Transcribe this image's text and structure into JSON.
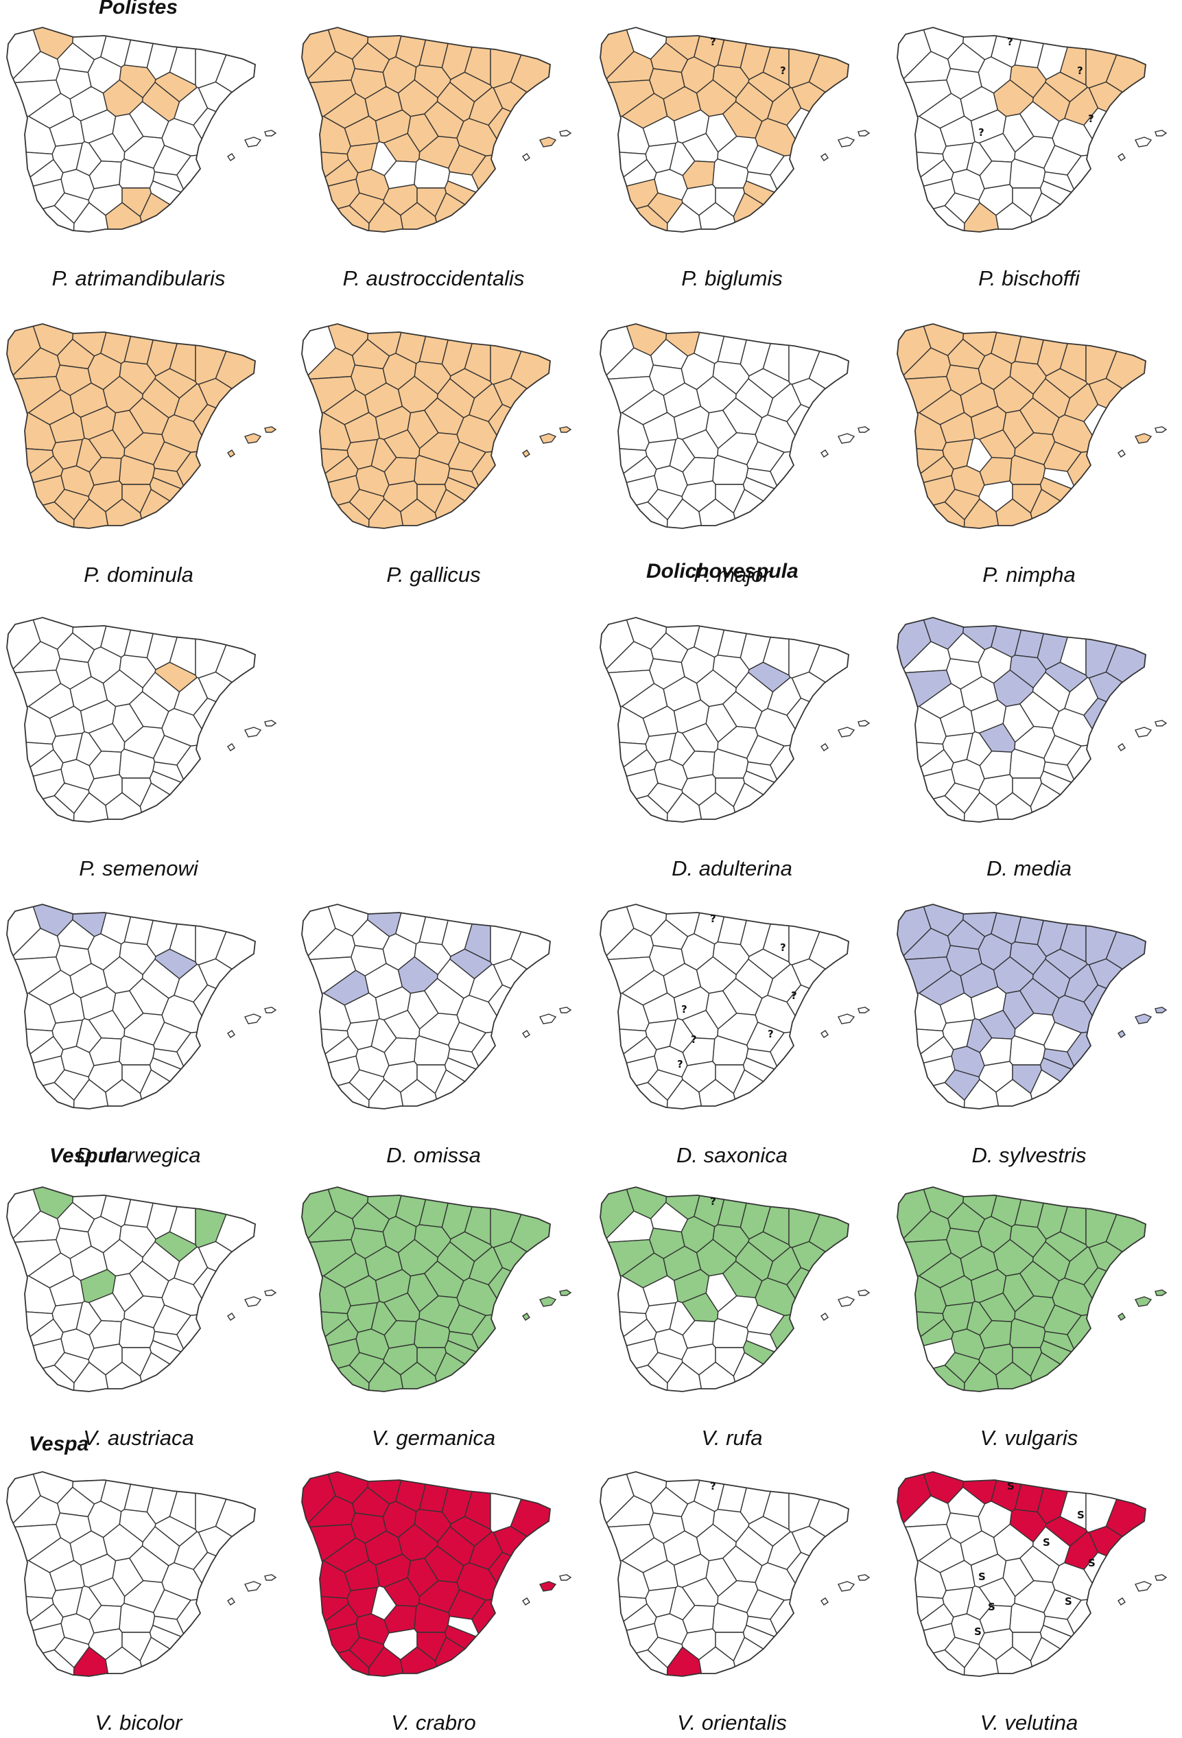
{
  "genera": [
    {
      "name": "Polistes",
      "color": "#f7c994"
    },
    {
      "name": "Dolichovespula",
      "color": "#b8bde0"
    },
    {
      "name": "Vespula",
      "color": "#92cc88"
    },
    {
      "name": "Vespa",
      "color": "#d8093f"
    }
  ],
  "maps": [
    {
      "species": "P. atrimandibularis",
      "genus": 0,
      "filled": [
        1,
        12,
        13,
        18,
        21,
        40,
        43,
        44
      ],
      "marks": []
    },
    {
      "species": "P. austroccidentalis",
      "genus": 0,
      "filled": [
        0,
        1,
        2,
        3,
        4,
        5,
        6,
        7,
        8,
        9,
        10,
        11,
        12,
        13,
        14,
        15,
        16,
        17,
        18,
        19,
        20,
        21,
        22,
        23,
        24,
        25,
        26,
        27,
        28,
        29,
        30,
        31,
        32,
        33,
        34,
        37,
        38,
        39,
        40,
        41,
        42,
        43,
        44,
        45,
        46,
        47
      ],
      "marks": []
    },
    {
      "species": "P. biglumis",
      "genus": 0,
      "filled": [
        0,
        2,
        3,
        4,
        5,
        6,
        7,
        8,
        9,
        10,
        11,
        12,
        13,
        14,
        15,
        16,
        17,
        18,
        19,
        20,
        21,
        22,
        23,
        34,
        36,
        37,
        41,
        43,
        45
      ],
      "marks": [
        "?",
        "?"
      ]
    },
    {
      "species": "P. bischoffi",
      "genus": 0,
      "filled": [
        6,
        12,
        13,
        14,
        15,
        16,
        17,
        18,
        21,
        42
      ],
      "marks": [
        "?",
        "?",
        "?",
        "?"
      ]
    },
    {
      "species": "P. dominula",
      "genus": 0,
      "filled": [
        0,
        1,
        2,
        3,
        4,
        5,
        6,
        7,
        8,
        9,
        10,
        11,
        12,
        13,
        14,
        15,
        16,
        17,
        18,
        19,
        20,
        21,
        22,
        23,
        24,
        25,
        26,
        27,
        28,
        29,
        30,
        31,
        32,
        33,
        34,
        35,
        36,
        37,
        38,
        39,
        40,
        41,
        42,
        43,
        44,
        45,
        46,
        47,
        48,
        49
      ],
      "marks": []
    },
    {
      "species": "P. gallicus",
      "genus": 0,
      "filled": [
        1,
        2,
        3,
        4,
        5,
        6,
        7,
        8,
        9,
        10,
        11,
        12,
        13,
        14,
        15,
        16,
        17,
        18,
        19,
        20,
        21,
        22,
        23,
        24,
        25,
        26,
        27,
        28,
        29,
        30,
        31,
        32,
        33,
        34,
        35,
        36,
        37,
        38,
        39,
        40,
        41,
        42,
        43,
        44,
        45,
        46,
        47,
        48,
        49
      ],
      "marks": []
    },
    {
      "species": "P. major",
      "genus": 0,
      "filled": [
        1,
        2
      ],
      "marks": []
    },
    {
      "species": "P. nimpha",
      "genus": 0,
      "filled": [
        0,
        1,
        2,
        3,
        4,
        5,
        6,
        7,
        8,
        9,
        10,
        11,
        12,
        13,
        14,
        15,
        16,
        17,
        18,
        19,
        20,
        21,
        22,
        23,
        25,
        26,
        27,
        28,
        29,
        30,
        31,
        32,
        33,
        34,
        35,
        36,
        37,
        38,
        40,
        41,
        42,
        43,
        44,
        45,
        46,
        47
      ],
      "marks": []
    },
    {
      "species": "P. semenowi",
      "genus": 0,
      "filled": [
        13
      ],
      "marks": []
    },
    {
      "species": "D. adulterina",
      "genus": 1,
      "filled": [
        13
      ],
      "marks": []
    },
    {
      "species": "D. media",
      "genus": 1,
      "filled": [
        0,
        1,
        2,
        3,
        4,
        5,
        9,
        12,
        13,
        14,
        15,
        16,
        21,
        24,
        30
      ],
      "marks": []
    },
    {
      "species": "D. norwegica",
      "genus": 1,
      "filled": [
        1,
        2,
        13
      ],
      "marks": []
    },
    {
      "species": "D. omissa",
      "genus": 1,
      "filled": [
        2,
        6,
        13,
        19,
        21
      ],
      "marks": []
    },
    {
      "species": "D. saxonica",
      "genus": 1,
      "filled": [],
      "marks": [
        "?",
        "?",
        "?",
        "?",
        "?",
        "?",
        "?"
      ]
    },
    {
      "species": "D. sylvestris",
      "genus": 1,
      "filled": [
        0,
        1,
        2,
        3,
        4,
        5,
        6,
        7,
        8,
        9,
        10,
        11,
        12,
        13,
        14,
        15,
        16,
        17,
        18,
        19,
        20,
        21,
        22,
        23,
        24,
        30,
        33,
        34,
        38,
        40,
        41,
        47,
        48,
        49
      ],
      "marks": []
    },
    {
      "species": "V. austriaca",
      "genus": 2,
      "filled": [
        1,
        13,
        14,
        25
      ],
      "marks": []
    },
    {
      "species": "V. germanica",
      "genus": 2,
      "filled": [
        0,
        1,
        2,
        3,
        4,
        5,
        6,
        7,
        8,
        9,
        10,
        11,
        12,
        13,
        14,
        15,
        16,
        17,
        18,
        19,
        20,
        21,
        22,
        23,
        24,
        25,
        26,
        27,
        28,
        29,
        30,
        31,
        32,
        33,
        34,
        35,
        36,
        37,
        38,
        39,
        40,
        41,
        42,
        43,
        44,
        45,
        46,
        47,
        48,
        49
      ],
      "marks": []
    },
    {
      "species": "V. rufa",
      "genus": 2,
      "filled": [
        0,
        1,
        2,
        3,
        4,
        5,
        6,
        9,
        10,
        11,
        12,
        13,
        14,
        15,
        16,
        17,
        18,
        19,
        20,
        21,
        22,
        23,
        24,
        25,
        30,
        33,
        34
      ],
      "marks": [
        "?"
      ]
    },
    {
      "species": "V. vulgaris",
      "genus": 2,
      "filled": [
        0,
        1,
        2,
        3,
        4,
        5,
        6,
        7,
        8,
        9,
        10,
        11,
        12,
        13,
        14,
        15,
        16,
        17,
        18,
        19,
        20,
        21,
        22,
        23,
        24,
        25,
        26,
        27,
        28,
        29,
        30,
        31,
        32,
        33,
        34,
        35,
        36,
        38,
        39,
        40,
        41,
        42,
        43,
        44,
        45,
        46,
        47,
        48,
        49
      ],
      "marks": []
    },
    {
      "species": "V. bicolor",
      "genus": 3,
      "filled": [
        42
      ],
      "marks": []
    },
    {
      "species": "V. crabro",
      "genus": 3,
      "filled": [
        0,
        1,
        2,
        3,
        4,
        5,
        6,
        7,
        8,
        9,
        10,
        11,
        12,
        13,
        15,
        16,
        17,
        18,
        19,
        20,
        21,
        22,
        23,
        24,
        25,
        26,
        27,
        28,
        29,
        30,
        31,
        32,
        33,
        34,
        35,
        36,
        37,
        38,
        40,
        41,
        42,
        43,
        44,
        45,
        46,
        47
      ],
      "marks": []
    },
    {
      "species": "V. orientalis",
      "genus": 3,
      "filled": [
        42
      ],
      "marks": [
        "?"
      ]
    },
    {
      "species": "V. velutina",
      "genus": 3,
      "filled": [
        0,
        1,
        2,
        3,
        4,
        5,
        12,
        13,
        15,
        16,
        17
      ],
      "marks": [
        "S",
        "S",
        "S",
        "S",
        "S",
        "S",
        "S",
        "S"
      ]
    }
  ]
}
